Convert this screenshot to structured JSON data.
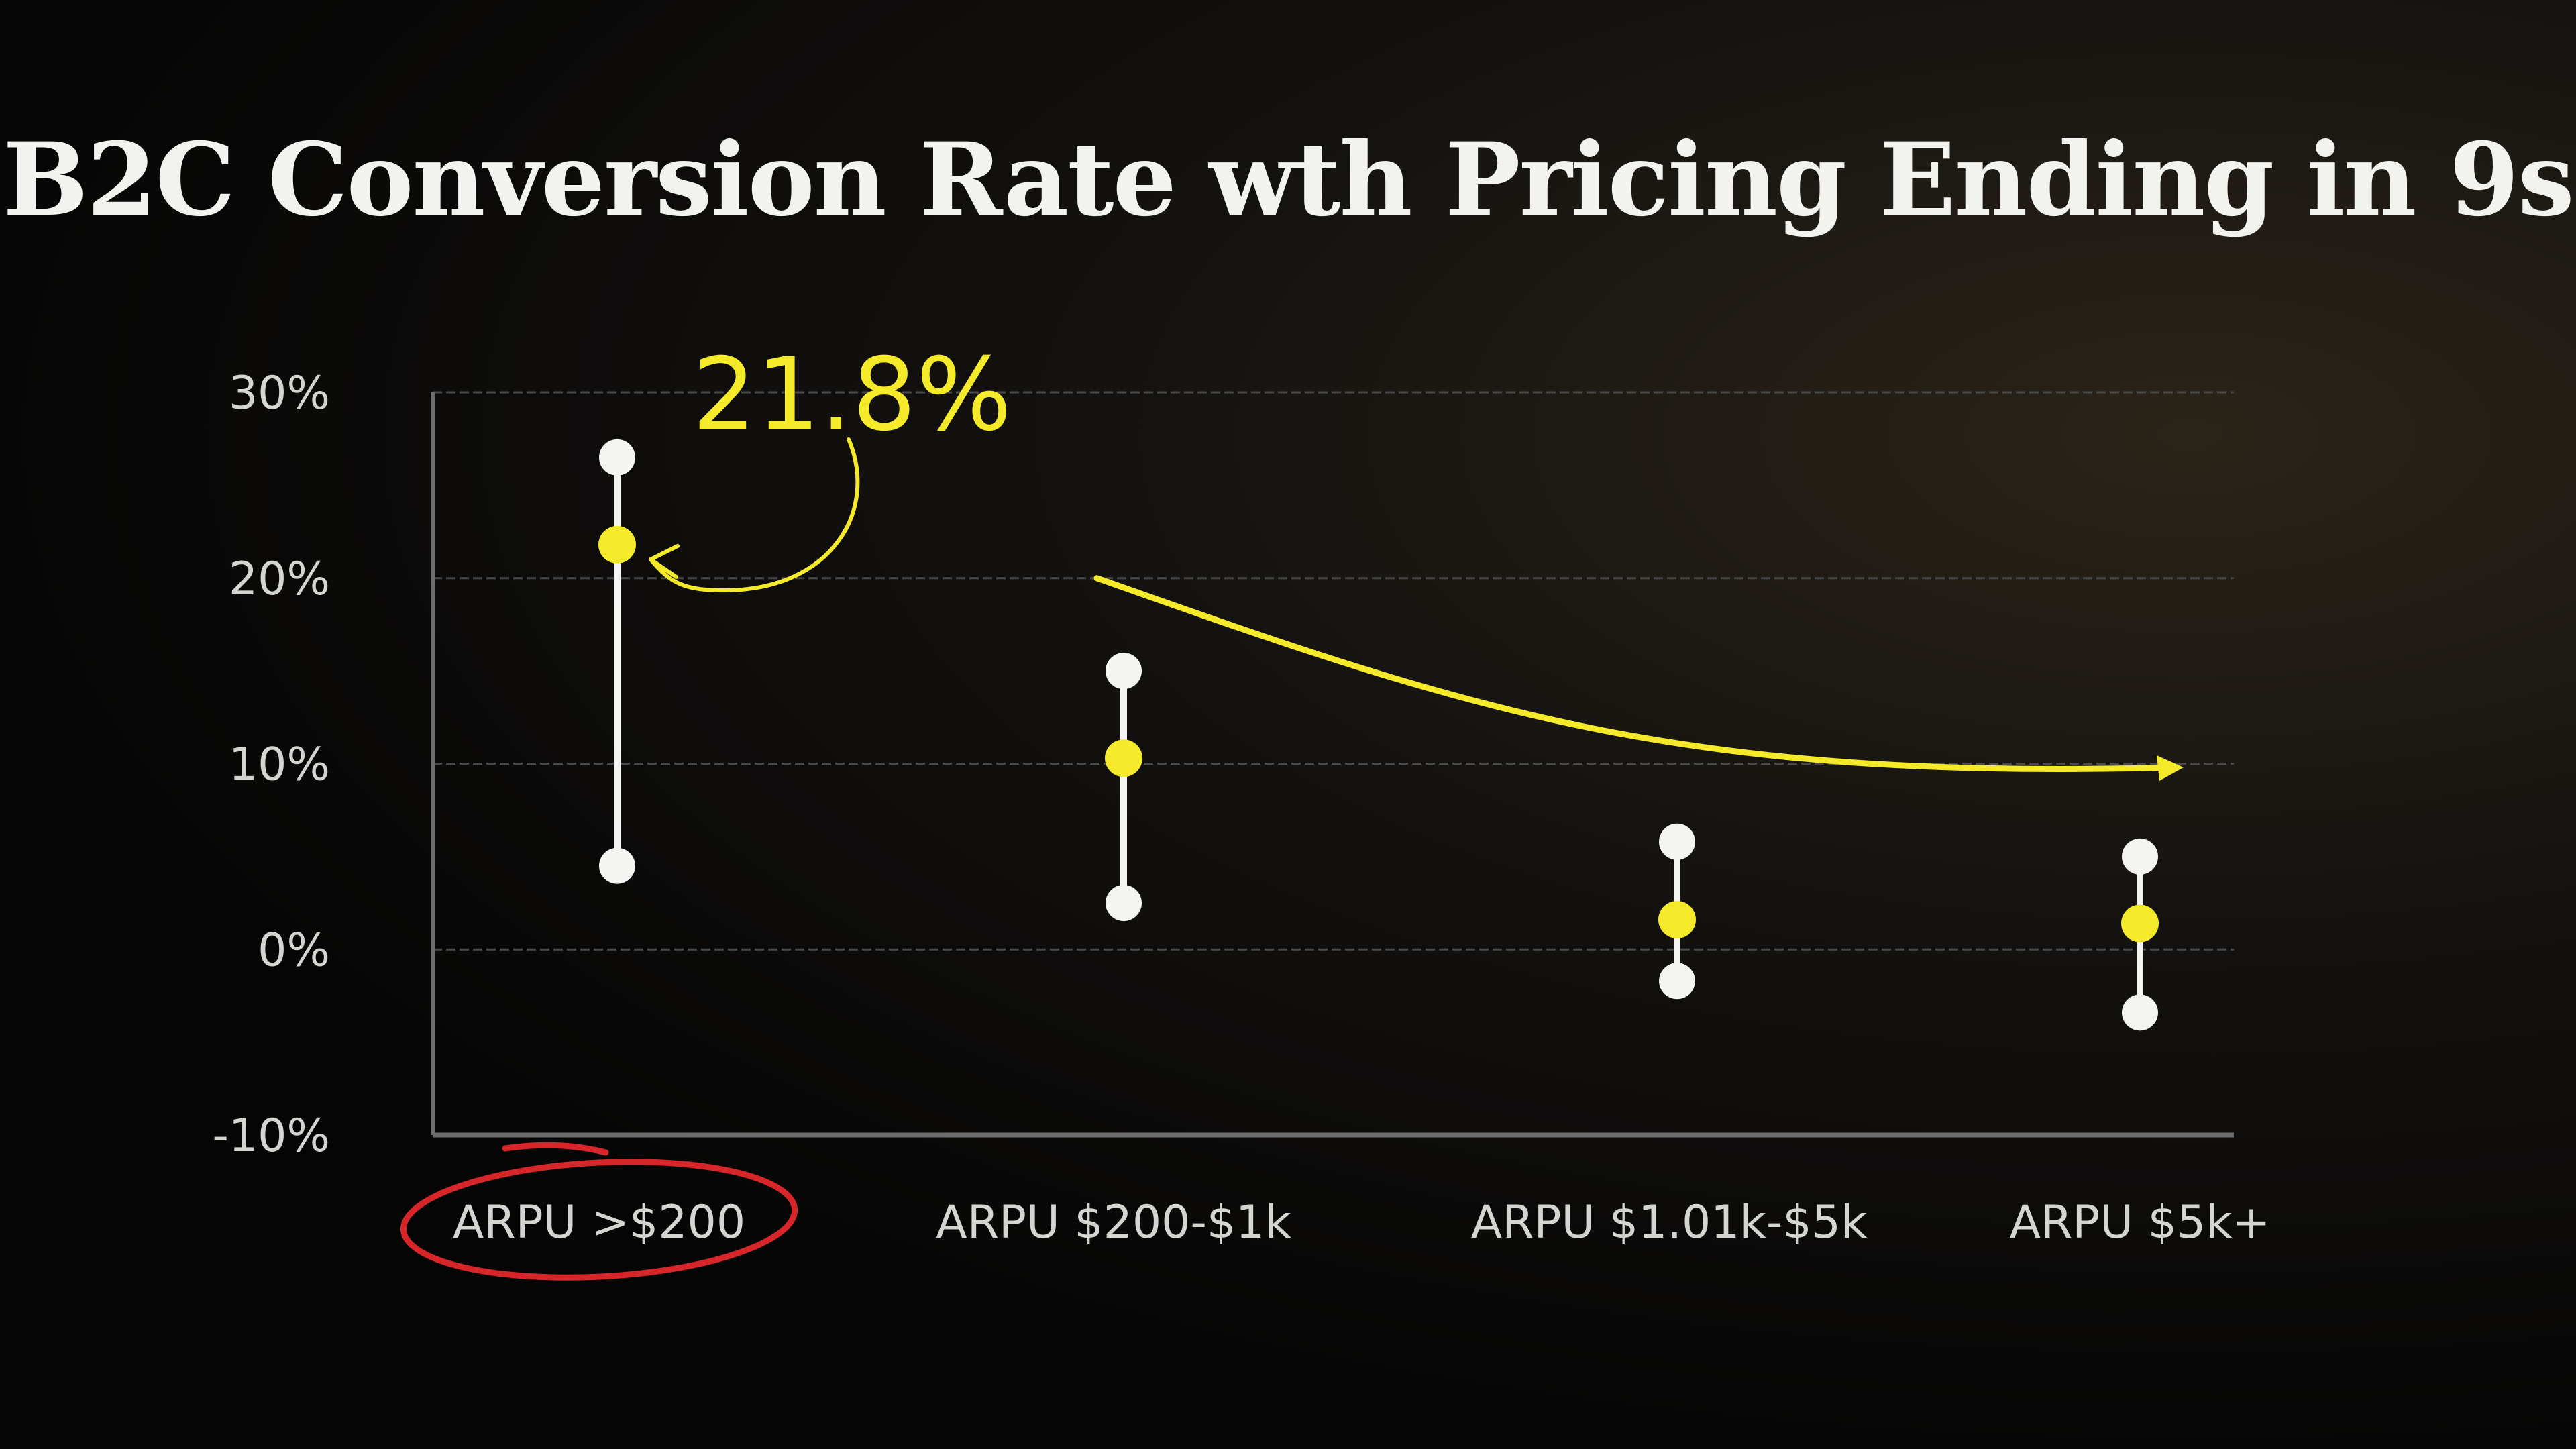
{
  "chart_data": {
    "type": "scatter",
    "title": "B2C Conversion Rate wth Pricing Ending in 9s",
    "categories": [
      "ARPU >$200",
      "ARPU $200-$1k",
      "ARPU $1.01k-$5k",
      "ARPU $5k+"
    ],
    "yticks": [
      "30%",
      "20%",
      "10%",
      "0%",
      "-10%"
    ],
    "ylim": [
      -10,
      30
    ],
    "grid": true,
    "series": [
      {
        "role": "upper",
        "values": [
          26.5,
          15,
          5.8,
          5
        ]
      },
      {
        "role": "point",
        "values": [
          21.8,
          10.3,
          1.6,
          1.4
        ]
      },
      {
        "role": "lower",
        "values": [
          4.5,
          2.5,
          -1.7,
          -3.4
        ]
      }
    ],
    "annotations": [
      {
        "text": "21.8%",
        "category": 0,
        "value": 21.8
      }
    ],
    "trend": {
      "from_value": 20,
      "to_value": 9.8
    },
    "highlight_category": 0,
    "colors": {
      "point": "#f4ea2a",
      "bounds": "#f4f4f2",
      "grid": "#4a4a4a",
      "axis": "#6e6e6e",
      "text": "#d4d4d0",
      "highlight": "#d6262a"
    }
  }
}
